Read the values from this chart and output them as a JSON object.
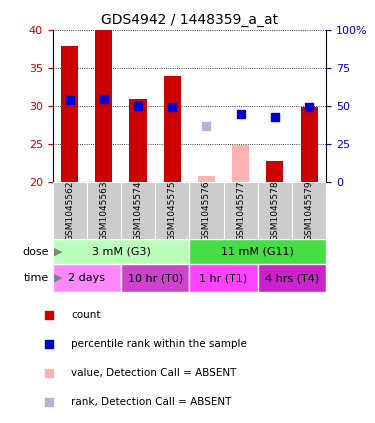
{
  "title": "GDS4942 / 1448359_a_at",
  "samples": [
    "GSM1045562",
    "GSM1045563",
    "GSM1045574",
    "GSM1045575",
    "GSM1045576",
    "GSM1045577",
    "GSM1045578",
    "GSM1045579"
  ],
  "bar_values": [
    37.8,
    40.0,
    30.9,
    33.9,
    null,
    null,
    22.8,
    29.9
  ],
  "bar_absent_values": [
    null,
    null,
    null,
    null,
    20.8,
    24.9,
    null,
    null
  ],
  "percentile_present": [
    30.8,
    30.9,
    30.0,
    29.9,
    null,
    28.9,
    28.5,
    29.9
  ],
  "percentile_absent": [
    null,
    null,
    null,
    null,
    27.4,
    null,
    null,
    null
  ],
  "ylim_left": [
    20,
    40
  ],
  "ylim_right": [
    0,
    100
  ],
  "yticks_left": [
    20,
    25,
    30,
    35,
    40
  ],
  "yticks_right": [
    0,
    25,
    50,
    75,
    100
  ],
  "bar_color": "#cc0000",
  "bar_absent_color": "#ffb3b3",
  "percentile_color": "#0000cc",
  "percentile_absent_color": "#b3b3dd",
  "dose_groups": [
    {
      "label": "3 mM (G3)",
      "start": 0,
      "end": 4,
      "color": "#bbffbb"
    },
    {
      "label": "11 mM (G11)",
      "start": 4,
      "end": 8,
      "color": "#44dd44"
    }
  ],
  "time_groups": [
    {
      "label": "2 days",
      "start": 0,
      "end": 2,
      "color": "#ff88ff"
    },
    {
      "label": "10 hr (T0)",
      "start": 2,
      "end": 4,
      "color": "#cc44cc"
    },
    {
      "label": "1 hr (T1)",
      "start": 4,
      "end": 6,
      "color": "#ff44ff"
    },
    {
      "label": "4 hrs (T4)",
      "start": 6,
      "end": 8,
      "color": "#cc22cc"
    }
  ],
  "legend_items": [
    {
      "label": "count",
      "color": "#cc0000"
    },
    {
      "label": "percentile rank within the sample",
      "color": "#0000cc"
    },
    {
      "label": "value, Detection Call = ABSENT",
      "color": "#ffb3b3"
    },
    {
      "label": "rank, Detection Call = ABSENT",
      "color": "#b3b3dd"
    }
  ],
  "ax_label_color_left": "#cc0000",
  "ax_label_color_right": "#0000cc",
  "sample_bg_color": "#cccccc",
  "bar_width": 0.5,
  "n_samples": 8
}
